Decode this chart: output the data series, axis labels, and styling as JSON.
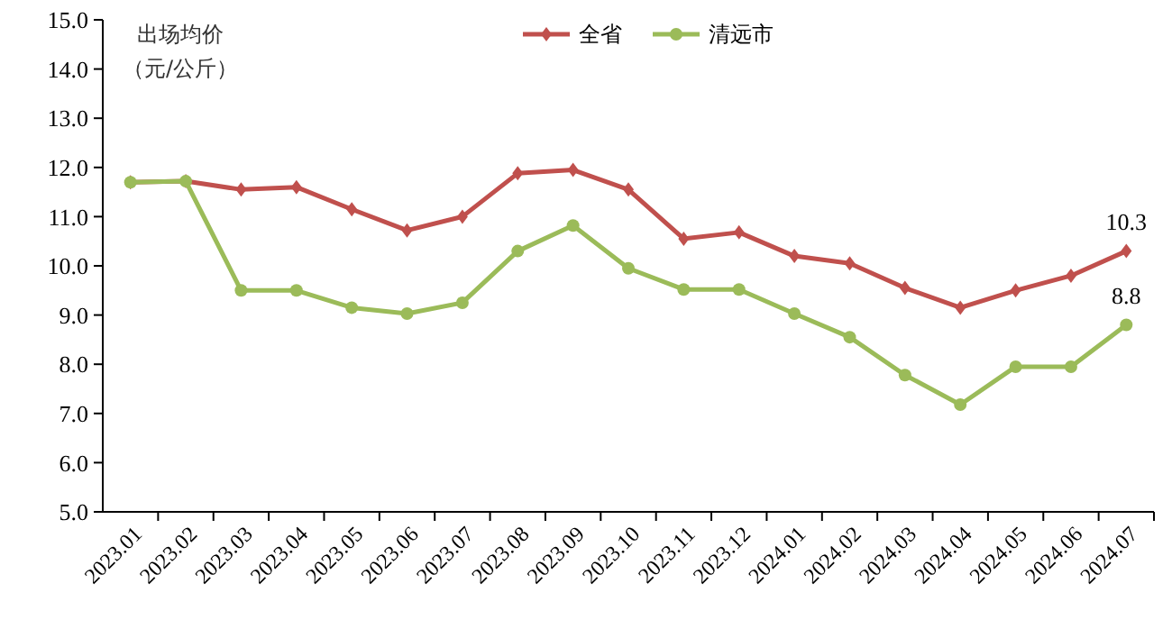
{
  "chart_data": {
    "type": "line",
    "ylabel": "出场均价（元/公斤）",
    "categories": [
      "2023.01",
      "2023.02",
      "2023.03",
      "2023.04",
      "2023.05",
      "2023.06",
      "2023.07",
      "2023.08",
      "2023.09",
      "2023.10",
      "2023.11",
      "2023.12",
      "2024.01",
      "2024.02",
      "2024.03",
      "2024.04",
      "2024.05",
      "2024.06",
      "2024.07"
    ],
    "series": [
      {
        "name": "全省",
        "color": "#c0504d",
        "marker": "diamond",
        "values": [
          11.7,
          11.72,
          11.55,
          11.6,
          11.15,
          10.72,
          11.0,
          11.88,
          11.95,
          11.55,
          10.55,
          10.68,
          10.2,
          10.05,
          9.55,
          9.15,
          9.5,
          9.8,
          10.3
        ],
        "value_labels": [
          null,
          null,
          null,
          null,
          null,
          null,
          null,
          null,
          null,
          null,
          null,
          null,
          null,
          null,
          null,
          null,
          null,
          null,
          "10.3"
        ]
      },
      {
        "name": "清远市",
        "color": "#9bbb59",
        "marker": "circle",
        "values": [
          11.7,
          11.72,
          9.5,
          9.5,
          9.15,
          9.03,
          9.25,
          10.3,
          10.82,
          9.95,
          9.52,
          9.52,
          9.03,
          8.55,
          7.78,
          7.18,
          7.95,
          7.95,
          8.8
        ],
        "value_labels": [
          null,
          null,
          null,
          null,
          null,
          null,
          null,
          null,
          null,
          null,
          null,
          null,
          null,
          null,
          null,
          null,
          null,
          null,
          "8.8"
        ]
      }
    ],
    "ylim": [
      5,
      15
    ],
    "yticks": [
      {
        "value": 5,
        "label": "5.0"
      },
      {
        "value": 6,
        "label": "6.0"
      },
      {
        "value": 7,
        "label": "7.0"
      },
      {
        "value": 8,
        "label": "8.0"
      },
      {
        "value": 9,
        "label": "9.0"
      },
      {
        "value": 10,
        "label": "10.0"
      },
      {
        "value": 11,
        "label": "11.0"
      },
      {
        "value": 12,
        "label": "12.0"
      },
      {
        "value": 13,
        "label": "13.0"
      },
      {
        "value": 14,
        "label": "14.0"
      },
      {
        "value": 15,
        "label": "15.0"
      }
    ],
    "grid": false,
    "legend": "top",
    "line_style": "solid"
  }
}
